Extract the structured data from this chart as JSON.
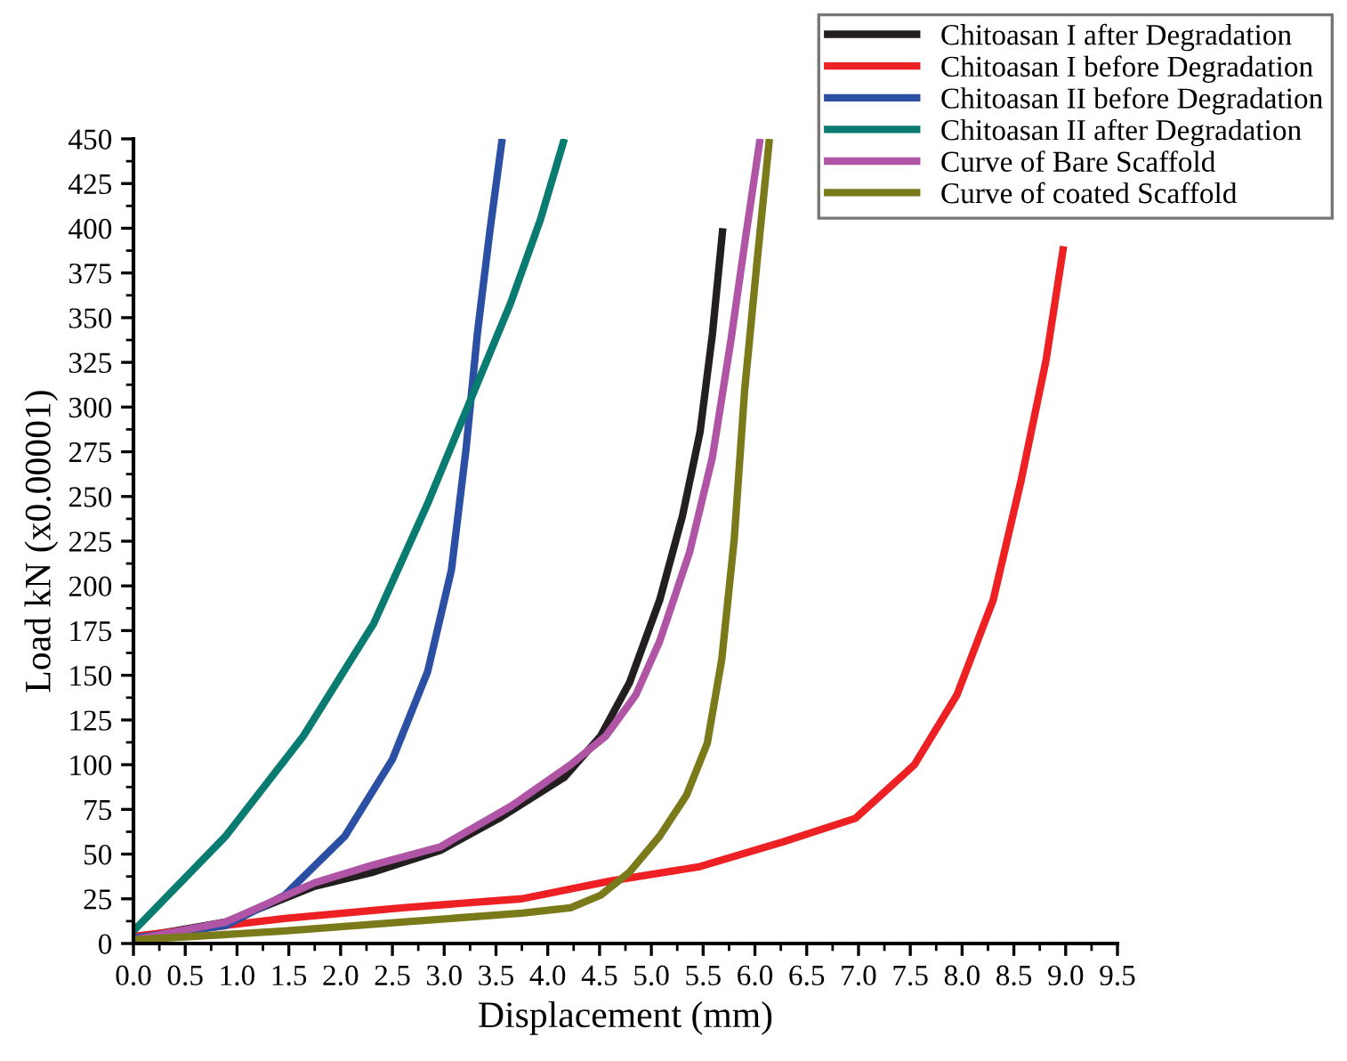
{
  "chart_data": {
    "type": "line",
    "xlabel": "Displacement (mm)",
    "ylabel": "Load kN (x0.00001)",
    "xlim": [
      0,
      9.5
    ],
    "xticks": [
      {
        "value": 0,
        "label": "0.0"
      },
      0.5,
      {
        "value": 1,
        "label": "1.0"
      },
      1.5,
      {
        "value": 2,
        "label": "2.0"
      },
      2.5,
      {
        "value": 3,
        "label": "3.0"
      },
      3.5,
      {
        "value": 4,
        "label": "4.0"
      },
      4.5,
      {
        "value": 5,
        "label": "5.0"
      },
      5.5,
      {
        "value": 6,
        "label": "6.0"
      },
      6.5,
      {
        "value": 7,
        "label": "7.0"
      },
      7.5,
      {
        "value": 8,
        "label": "8.0"
      },
      8.5,
      {
        "value": 9,
        "label": "9.0"
      },
      9.5
    ],
    "ylim": [
      0,
      450
    ],
    "yticks": [
      0,
      25,
      50,
      75,
      100,
      125,
      150,
      175,
      200,
      225,
      250,
      275,
      300,
      325,
      350,
      375,
      400,
      425,
      450
    ],
    "grid": false,
    "legend": "top right",
    "marker": "none",
    "line_style": "solid",
    "series": [
      {
        "name": "Chitoasan I after Degradation",
        "color": "#231f20",
        "x": [
          0,
          0.89,
          1.75,
          2.32,
          2.96,
          3.53,
          4.16,
          4.51,
          4.79,
          5.08,
          5.3,
          5.47,
          5.59,
          5.69
        ],
        "values": [
          3,
          12,
          32,
          40,
          52,
          70,
          93,
          116,
          146,
          192,
          239,
          286,
          341,
          400
        ]
      },
      {
        "name": "Chitoasan I before Degradation",
        "color": "#ed2024",
        "x": [
          0,
          1.46,
          2.6,
          3.75,
          4.61,
          5.47,
          6.28,
          6.97,
          7.54,
          7.95,
          8.3,
          8.57,
          8.81,
          8.98
        ],
        "values": [
          4,
          14,
          20,
          25,
          35,
          43,
          57,
          70,
          100,
          139,
          192,
          259,
          326,
          390
        ]
      },
      {
        "name": "Chitoasan II before Degradation",
        "color": "#2a4fa3",
        "x": [
          0,
          0.89,
          1.46,
          2.04,
          2.5,
          2.84,
          3.07,
          3.21,
          3.32,
          3.44,
          3.56
        ],
        "values": [
          3,
          10,
          27,
          60,
          103,
          152,
          209,
          276,
          341,
          398,
          450
        ]
      },
      {
        "name": "Chitoasan II after Degradation",
        "color": "#0a7b70",
        "x": [
          0,
          0.89,
          1.64,
          2.32,
          2.84,
          3.24,
          3.64,
          3.93,
          4.16
        ],
        "values": [
          7,
          60,
          116,
          179,
          246,
          302,
          358,
          405,
          450
        ]
      },
      {
        "name": "Curve of Bare Scaffold",
        "color": "#b055a5",
        "x": [
          0,
          0.89,
          1.75,
          2.32,
          2.96,
          3.65,
          4.22,
          4.56,
          4.85,
          5.08,
          5.37,
          5.59,
          5.77,
          5.9,
          6.05
        ],
        "values": [
          2,
          12,
          34,
          44,
          54,
          77,
          100,
          116,
          139,
          169,
          219,
          272,
          338,
          391,
          450
        ]
      },
      {
        "name": "Curve of coated Scaffold",
        "color": "#7a7a1a",
        "x": [
          0,
          1.46,
          2.6,
          3.75,
          4.22,
          4.51,
          4.79,
          5.08,
          5.34,
          5.54,
          5.68,
          5.8,
          5.9,
          6.02,
          6.14
        ],
        "values": [
          2,
          7,
          12,
          17,
          20,
          27,
          40,
          60,
          83,
          112,
          159,
          226,
          309,
          381,
          450
        ]
      }
    ]
  }
}
